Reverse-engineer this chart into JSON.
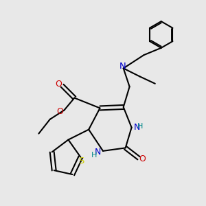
{
  "bg_color": "#e8e8e8",
  "bond_color": "#000000",
  "bond_lw": 1.5,
  "atom_colors": {
    "N": "#0000cc",
    "O": "#cc0000",
    "S": "#cccc00",
    "H": "#008888",
    "C": "#000000"
  },
  "font_size": 8.5,
  "title": ""
}
